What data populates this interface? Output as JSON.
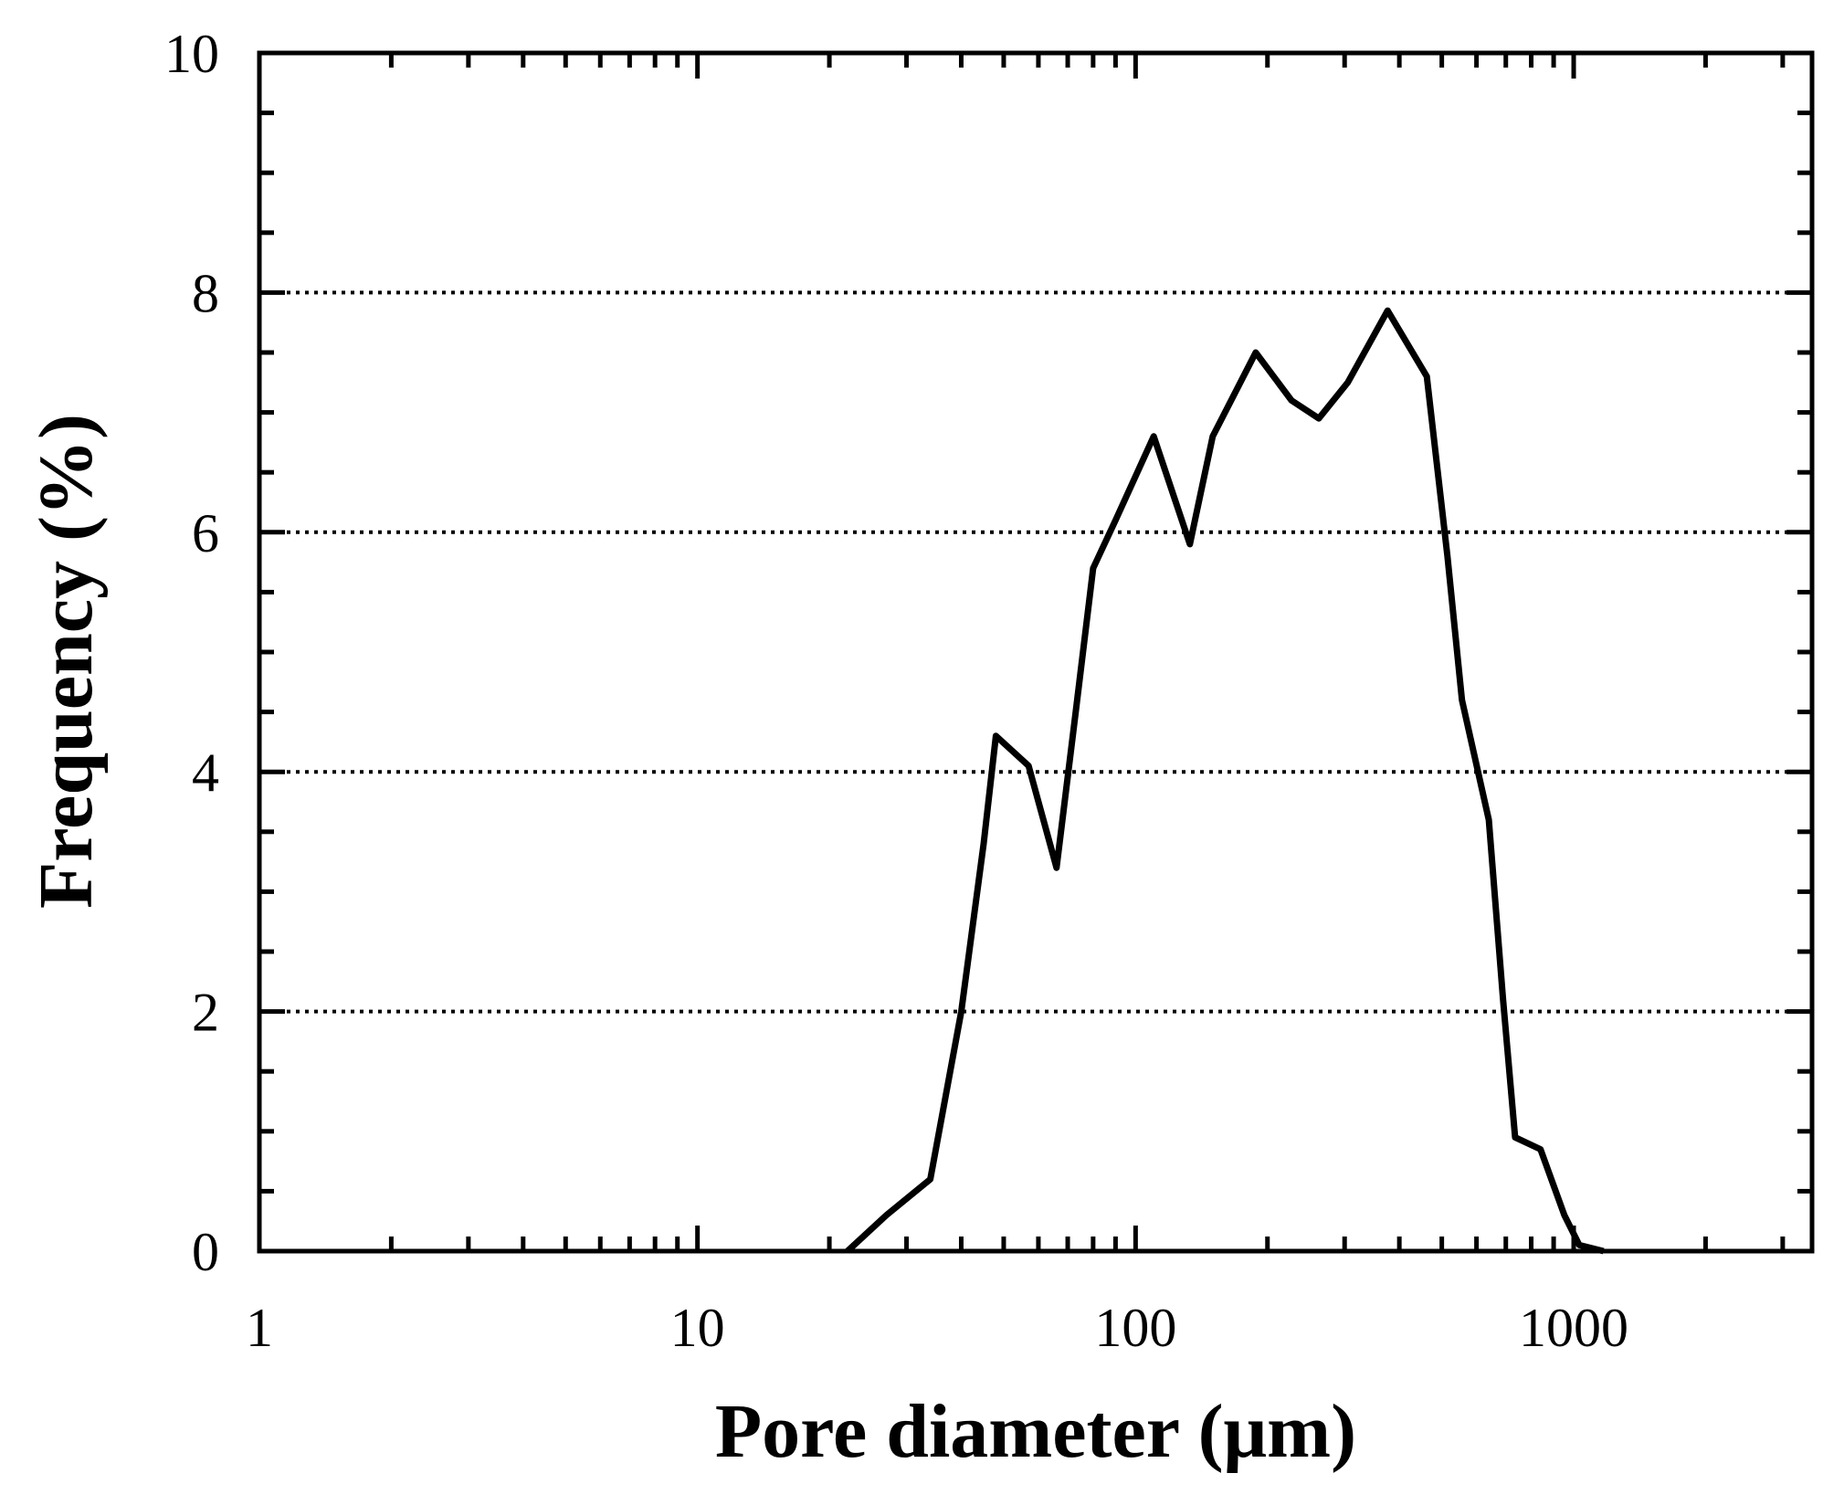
{
  "chart_data": {
    "type": "line",
    "title": "",
    "xlabel": "Pore diameter (μm)",
    "ylabel": "Frequency (%)",
    "x_scale": "log",
    "xlim": [
      1,
      3500
    ],
    "ylim": [
      0,
      10
    ],
    "x_ticks": [
      1,
      10,
      100,
      1000
    ],
    "x_tick_labels": [
      "1",
      "10",
      "100",
      "1000"
    ],
    "y_ticks": [
      0,
      2,
      4,
      6,
      8,
      10
    ],
    "y_tick_labels": [
      "0",
      "2",
      "4",
      "6",
      "8",
      "10"
    ],
    "grid": "horizontal dotted at y = 2, 4, 6, 8",
    "legend": "none",
    "line_color": "#000000",
    "series": [
      {
        "x": [
          22,
          27,
          34,
          40,
          45,
          48,
          57,
          66,
          73,
          80,
          90,
          110,
          133,
          150,
          188,
          227,
          262,
          305,
          376,
          462,
          515,
          556,
          640,
          690,
          735,
          840,
          952,
          1030,
          1170
        ],
        "y": [
          0,
          0.3,
          0.6,
          2.0,
          3.4,
          4.3,
          4.05,
          3.2,
          4.5,
          5.7,
          6.1,
          6.8,
          5.9,
          6.8,
          7.5,
          7.1,
          6.95,
          7.25,
          7.85,
          7.3,
          5.8,
          4.6,
          3.6,
          2.1,
          0.95,
          0.85,
          0.3,
          0.05,
          0
        ]
      }
    ]
  }
}
